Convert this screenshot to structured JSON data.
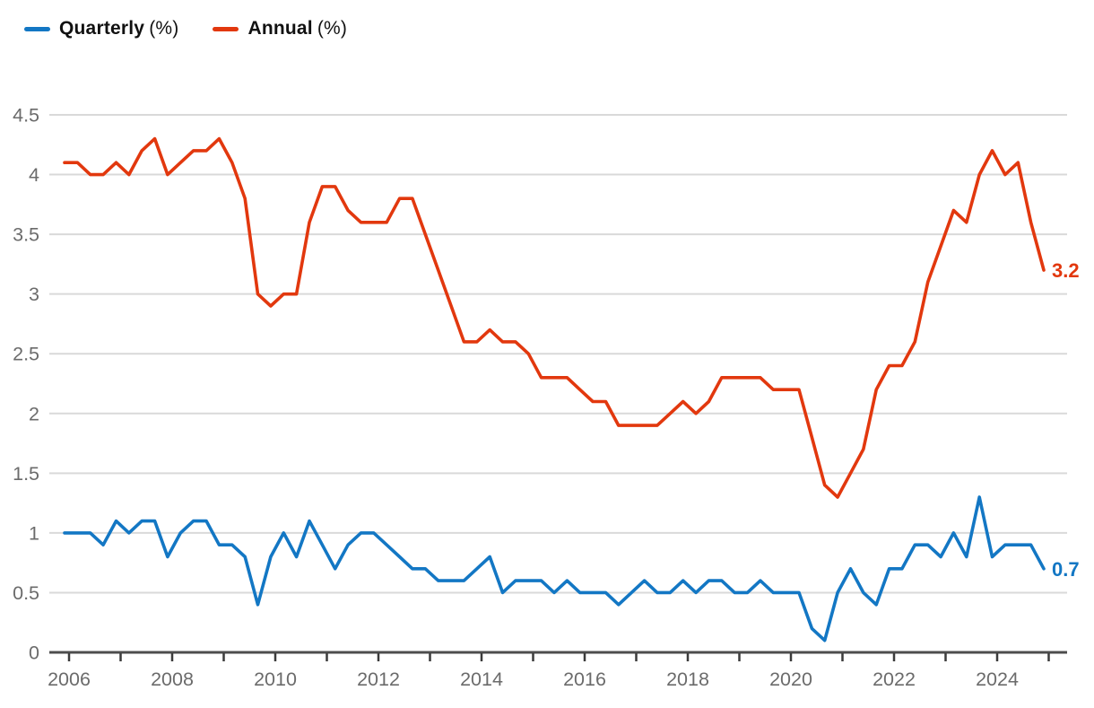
{
  "legend": [
    {
      "name": "Quarterly",
      "suffix": "(%)",
      "color": "#1377c4"
    },
    {
      "name": "Annual",
      "suffix": "(%)",
      "color": "#e2380e"
    }
  ],
  "colors": {
    "quarterly_line": "#1377c4",
    "annual_line": "#e2380e",
    "gridline": "#d9d9d9",
    "axis_line": "#4d4d4d",
    "tick": "#3b3b3b",
    "axis_text": "#6b6b6b",
    "legend_text": "#111111",
    "background": "#ffffff"
  },
  "chart_data": {
    "type": "line",
    "title": "",
    "xlabel": "",
    "ylabel": "",
    "grid": true,
    "legend_position": "top-left",
    "ylim": [
      0,
      4.5
    ],
    "y_ticks": [
      0,
      0.5,
      1,
      1.5,
      2,
      2.5,
      3,
      3.5,
      4,
      4.5
    ],
    "y_tick_labels": [
      "0",
      "0.5",
      "1",
      "1.5",
      "2",
      "2.5",
      "3",
      "3.5",
      "4",
      "4.5"
    ],
    "x_tick_years": [
      2006,
      2007,
      2008,
      2009,
      2010,
      2011,
      2012,
      2013,
      2014,
      2015,
      2016,
      2017,
      2018,
      2019,
      2020,
      2021,
      2022,
      2023,
      2024,
      2025
    ],
    "x_label_years": [
      "2006",
      "2008",
      "2010",
      "2012",
      "2014",
      "2016",
      "2018",
      "2020",
      "2022",
      "2024"
    ],
    "categories": [
      "2005 Q4",
      "2006 Q1",
      "2006 Q2",
      "2006 Q3",
      "2006 Q4",
      "2007 Q1",
      "2007 Q2",
      "2007 Q3",
      "2007 Q4",
      "2008 Q1",
      "2008 Q2",
      "2008 Q3",
      "2008 Q4",
      "2009 Q1",
      "2009 Q2",
      "2009 Q3",
      "2009 Q4",
      "2010 Q1",
      "2010 Q2",
      "2010 Q3",
      "2010 Q4",
      "2011 Q1",
      "2011 Q2",
      "2011 Q3",
      "2011 Q4",
      "2012 Q1",
      "2012 Q2",
      "2012 Q3",
      "2012 Q4",
      "2013 Q1",
      "2013 Q2",
      "2013 Q3",
      "2013 Q4",
      "2014 Q1",
      "2014 Q2",
      "2014 Q3",
      "2014 Q4",
      "2015 Q1",
      "2015 Q2",
      "2015 Q3",
      "2015 Q4",
      "2016 Q1",
      "2016 Q2",
      "2016 Q3",
      "2016 Q4",
      "2017 Q1",
      "2017 Q2",
      "2017 Q3",
      "2017 Q4",
      "2018 Q1",
      "2018 Q2",
      "2018 Q3",
      "2018 Q4",
      "2019 Q1",
      "2019 Q2",
      "2019 Q3",
      "2019 Q4",
      "2020 Q1",
      "2020 Q2",
      "2020 Q3",
      "2020 Q4",
      "2021 Q1",
      "2021 Q2",
      "2021 Q3",
      "2021 Q4",
      "2022 Q1",
      "2022 Q2",
      "2022 Q3",
      "2022 Q4",
      "2023 Q1",
      "2023 Q2",
      "2023 Q3",
      "2023 Q4",
      "2024 Q1",
      "2024 Q2",
      "2024 Q3",
      "2024 Q4"
    ],
    "series": [
      {
        "name": "Quarterly (%)",
        "color": "#1377c4",
        "end_label": "0.7",
        "values": [
          1.0,
          1.0,
          1.0,
          0.9,
          1.1,
          1.0,
          1.1,
          1.1,
          0.8,
          1.0,
          1.1,
          1.1,
          0.9,
          0.9,
          0.8,
          0.4,
          0.8,
          1.0,
          0.8,
          1.1,
          0.9,
          0.7,
          0.9,
          1.0,
          1.0,
          0.9,
          0.8,
          0.7,
          0.7,
          0.6,
          0.6,
          0.6,
          0.7,
          0.8,
          0.5,
          0.6,
          0.6,
          0.6,
          0.5,
          0.6,
          0.5,
          0.5,
          0.5,
          0.4,
          0.5,
          0.6,
          0.5,
          0.5,
          0.6,
          0.5,
          0.6,
          0.6,
          0.5,
          0.5,
          0.6,
          0.5,
          0.5,
          0.5,
          0.2,
          0.1,
          0.5,
          0.7,
          0.5,
          0.4,
          0.7,
          0.7,
          0.9,
          0.9,
          0.8,
          1.0,
          0.8,
          1.3,
          0.8,
          0.9,
          0.9,
          0.9,
          0.7
        ]
      },
      {
        "name": "Annual (%)",
        "color": "#e2380e",
        "end_label": "3.2",
        "values": [
          4.1,
          4.1,
          4.0,
          4.0,
          4.1,
          4.0,
          4.2,
          4.3,
          4.0,
          4.1,
          4.2,
          4.2,
          4.3,
          4.1,
          3.8,
          3.0,
          2.9,
          3.0,
          3.0,
          3.6,
          3.9,
          3.9,
          3.7,
          3.6,
          3.6,
          3.6,
          3.8,
          3.8,
          3.5,
          3.2,
          2.9,
          2.6,
          2.6,
          2.7,
          2.6,
          2.6,
          2.5,
          2.3,
          2.3,
          2.3,
          2.2,
          2.1,
          2.1,
          1.9,
          1.9,
          1.9,
          1.9,
          2.0,
          2.1,
          2.0,
          2.1,
          2.3,
          2.3,
          2.3,
          2.3,
          2.2,
          2.2,
          2.2,
          1.8,
          1.4,
          1.3,
          1.5,
          1.7,
          2.2,
          2.4,
          2.4,
          2.6,
          3.1,
          3.4,
          3.7,
          3.6,
          4.0,
          4.2,
          4.0,
          4.1,
          3.6,
          3.2
        ]
      }
    ]
  }
}
